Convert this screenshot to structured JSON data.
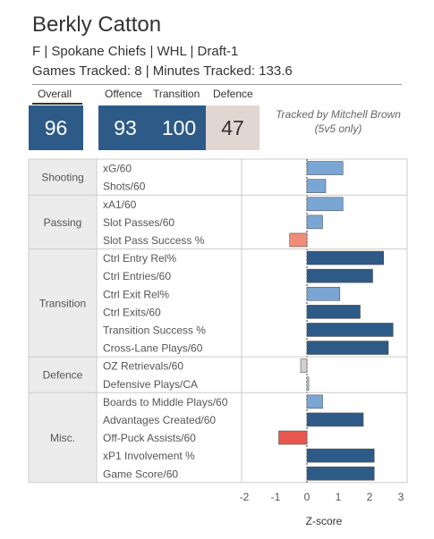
{
  "player": {
    "name": "Berkly Catton",
    "info_line": "F | Spokane Chiefs | WHL | Draft-1",
    "tracking_line": "Games Tracked: 8 | Minutes Tracked: 133.6"
  },
  "scores": {
    "overall": {
      "label": "Overall",
      "value": "96"
    },
    "offence": {
      "label": "Offence",
      "value": "93"
    },
    "transition": {
      "label": "Transition",
      "value": "100"
    },
    "defence": {
      "label": "Defence",
      "value": "47"
    }
  },
  "tracker_note": {
    "line1": "Tracked by Mitchell Brown",
    "line2": "(5v5 only)"
  },
  "colors": {
    "dark_blue": "#2e5a87",
    "light_blue": "#7aa6d4",
    "salmon": "#f08c78",
    "red": "#e8574f",
    "light_gray": "#d4d0ce",
    "category_bg": "#ececec"
  },
  "chart_data": {
    "type": "bar",
    "orientation": "horizontal",
    "xlabel": "Z-score",
    "xlim": [
      -2,
      3
    ],
    "x_ticks": [
      -2,
      -1,
      0,
      1,
      2,
      3
    ],
    "groups": [
      {
        "name": "Shooting",
        "metrics": [
          {
            "label": "xG/60",
            "value": 1.15,
            "color": "light_blue"
          },
          {
            "label": "Shots/60",
            "value": 0.6,
            "color": "light_blue"
          }
        ]
      },
      {
        "name": "Passing",
        "metrics": [
          {
            "label": "xA1/60",
            "value": 1.15,
            "color": "light_blue"
          },
          {
            "label": "Slot Passes/60",
            "value": 0.5,
            "color": "light_blue"
          },
          {
            "label": "Slot Pass Success %",
            "value": -0.55,
            "color": "salmon"
          }
        ]
      },
      {
        "name": "Transition",
        "metrics": [
          {
            "label": "Ctrl Entry Rel%",
            "value": 2.45,
            "color": "dark_blue"
          },
          {
            "label": "Ctrl Entries/60",
            "value": 2.1,
            "color": "dark_blue"
          },
          {
            "label": "Ctrl Exit Rel%",
            "value": 1.05,
            "color": "light_blue"
          },
          {
            "label": "Ctrl Exits/60",
            "value": 1.7,
            "color": "dark_blue"
          },
          {
            "label": "Transition Success %",
            "value": 2.75,
            "color": "dark_blue"
          },
          {
            "label": "Cross-Lane Plays/60",
            "value": 2.6,
            "color": "dark_blue"
          }
        ]
      },
      {
        "name": "Defence",
        "metrics": [
          {
            "label": "OZ Retrievals/60",
            "value": -0.2,
            "color": "light_gray"
          },
          {
            "label": "Defensive Plays/CA",
            "value": 0.03,
            "color": "light_gray"
          }
        ]
      },
      {
        "name": "Misc.",
        "metrics": [
          {
            "label": "Boards to Middle Plays/60",
            "value": 0.5,
            "color": "light_blue"
          },
          {
            "label": "Advantages Created/60",
            "value": 1.8,
            "color": "dark_blue"
          },
          {
            "label": "Off-Puck Assists/60",
            "value": -0.9,
            "color": "red"
          },
          {
            "label": "xP1 Involvement %",
            "value": 2.15,
            "color": "dark_blue"
          },
          {
            "label": "Game Score/60",
            "value": 2.15,
            "color": "dark_blue"
          }
        ]
      }
    ]
  }
}
